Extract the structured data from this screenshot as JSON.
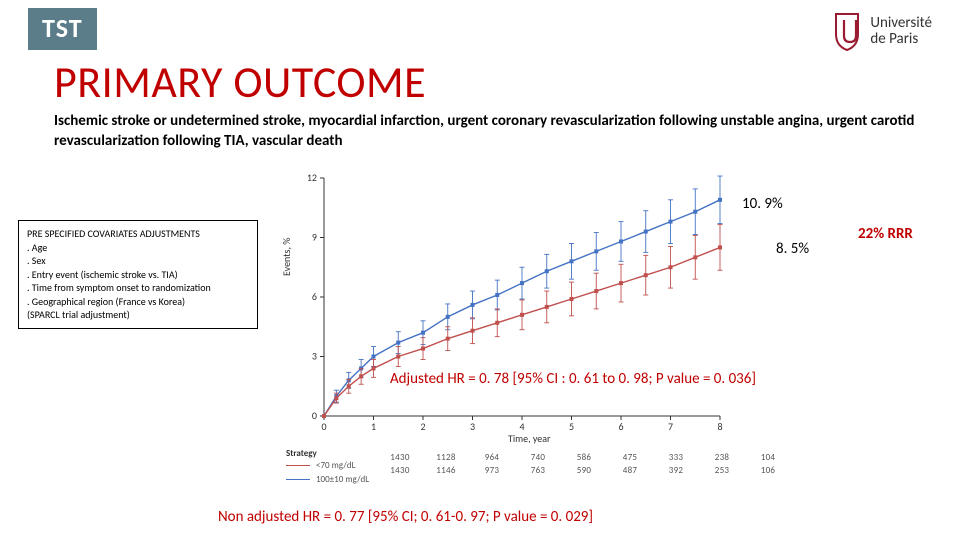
{
  "badge": {
    "label": "TST"
  },
  "title": "PRIMARY OUTCOME",
  "logo": {
    "line1": "Université",
    "line2": "de Paris",
    "accent": "#9a1b30"
  },
  "subtitle": "Ischemic stroke or undetermined stroke, myocardial infarction, urgent coronary revascularization following unstable angina, urgent carotid revascularization following TIA, vascular death",
  "covariates": {
    "header": "PRE SPECIFIED COVARIATES ADJUSTMENTS",
    "items": [
      ". Age",
      ". Sex",
      ". Entry event (ischemic stroke vs. TIA)",
      ". Time from symptom onset to randomization",
      ". Geographical region (France vs Korea)",
      "(SPARCL trial adjustment)"
    ]
  },
  "annotations": {
    "upper": "10. 9%",
    "lower": "8. 5%",
    "rrr": "22% RRR",
    "hr_adj": "Adjusted HR = 0. 78 [95% CI : 0. 61 to 0. 98; P value = 0. 036]",
    "hr_nonadj": "Non adjusted HR = 0. 77 [95% CI; 0. 61-0. 97; P value = 0. 029]"
  },
  "chart": {
    "type": "line-errorbar",
    "x_label": "Time, year",
    "y_label": "Events, %",
    "xlim": [
      0,
      8
    ],
    "ylim": [
      0,
      12
    ],
    "xticks": [
      0,
      1,
      2,
      3,
      4,
      5,
      6,
      7,
      8
    ],
    "yticks": [
      0,
      3,
      6,
      9,
      12
    ],
    "background_color": "#ffffff",
    "axis_color": "#333333",
    "font_size": 10,
    "series": [
      {
        "name": "100±10 mg/dL",
        "color": "#4472c4",
        "marker": "square",
        "line_width": 1.4,
        "x": [
          0,
          0.25,
          0.5,
          0.75,
          1,
          1.5,
          2,
          2.5,
          3,
          3.5,
          4,
          4.5,
          5,
          5.5,
          6,
          6.5,
          7,
          7.5,
          8
        ],
        "y": [
          0,
          1.0,
          1.8,
          2.4,
          3.0,
          3.7,
          4.2,
          5.0,
          5.6,
          6.1,
          6.7,
          7.3,
          7.8,
          8.3,
          8.8,
          9.3,
          9.8,
          10.3,
          10.9
        ],
        "err": [
          0,
          0.3,
          0.4,
          0.45,
          0.5,
          0.55,
          0.6,
          0.65,
          0.7,
          0.75,
          0.8,
          0.85,
          0.9,
          0.95,
          1.0,
          1.05,
          1.1,
          1.15,
          1.2
        ]
      },
      {
        "name": "<70 mg/dL",
        "color": "#c0504d",
        "marker": "square",
        "line_width": 1.4,
        "x": [
          0,
          0.25,
          0.5,
          0.75,
          1,
          1.5,
          2,
          2.5,
          3,
          3.5,
          4,
          4.5,
          5,
          5.5,
          6,
          6.5,
          7,
          7.5,
          8
        ],
        "y": [
          0,
          0.9,
          1.5,
          2.0,
          2.4,
          3.0,
          3.4,
          3.9,
          4.3,
          4.7,
          5.1,
          5.5,
          5.9,
          6.3,
          6.7,
          7.1,
          7.5,
          8.0,
          8.5
        ],
        "err": [
          0,
          0.25,
          0.35,
          0.4,
          0.45,
          0.5,
          0.55,
          0.6,
          0.65,
          0.7,
          0.75,
          0.8,
          0.85,
          0.9,
          0.95,
          1.0,
          1.05,
          1.1,
          1.15
        ]
      }
    ]
  },
  "strategy": {
    "header": "Strategy",
    "rows": [
      {
        "label": "<70 mg/dL",
        "color": "#c0504d"
      },
      {
        "label": "100±10 mg/dL",
        "color": "#4472c4"
      }
    ]
  },
  "n_at_risk": {
    "cols": [
      0,
      1,
      2,
      3,
      4,
      5,
      6,
      7,
      8
    ],
    "rows": [
      [
        "1430",
        "1128",
        "964",
        "740",
        "586",
        "475",
        "333",
        "238",
        "104"
      ],
      [
        "1430",
        "1146",
        "973",
        "763",
        "590",
        "487",
        "392",
        "253",
        "106"
      ]
    ]
  },
  "colors": {
    "title": "#c00000",
    "badge_bg": "#5b7d8a"
  }
}
